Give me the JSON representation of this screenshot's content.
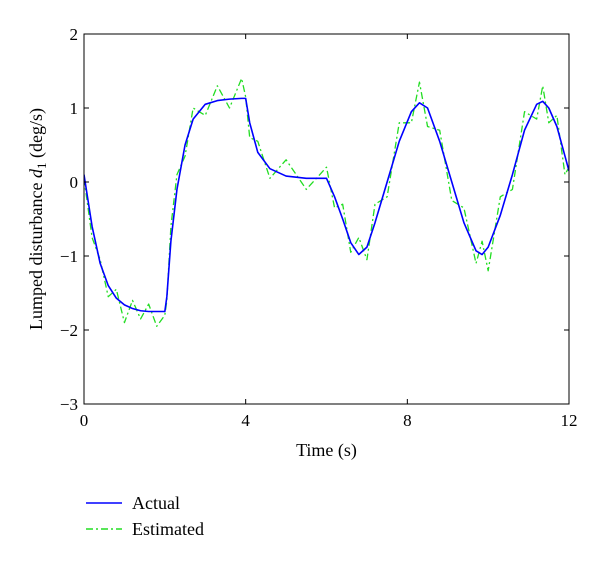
{
  "chart_data": {
    "type": "line",
    "xlabel": "Time (s)",
    "ylabel": {
      "prefix": "Lumped disturbance ",
      "symbol": "d",
      "subscript": "1",
      "suffix": " (deg/s)"
    },
    "xlim": [
      0,
      12
    ],
    "ylim": [
      -3,
      2
    ],
    "xticks": [
      0,
      4,
      8,
      12
    ],
    "yticks": [
      -3,
      -2,
      -1,
      0,
      1,
      2
    ],
    "grid": false,
    "legend": "bottom-left, below plot",
    "series": [
      {
        "name": "Actual",
        "style": "solid",
        "color": "#0000ff",
        "x": [
          0,
          0.2,
          0.4,
          0.6,
          0.8,
          1.0,
          1.2,
          1.4,
          1.6,
          1.8,
          2.0,
          2.05,
          2.15,
          2.3,
          2.5,
          2.7,
          3.0,
          3.3,
          3.6,
          3.9,
          4.0,
          4.1,
          4.3,
          4.6,
          5.0,
          5.5,
          6.0,
          6.2,
          6.4,
          6.6,
          6.8,
          7.0,
          7.2,
          7.5,
          7.8,
          8.1,
          8.3,
          8.5,
          8.8,
          9.1,
          9.4,
          9.7,
          9.85,
          10.0,
          10.3,
          10.6,
          10.9,
          11.2,
          11.35,
          11.5,
          11.7,
          11.9,
          12.0
        ],
        "y": [
          0.1,
          -0.6,
          -1.1,
          -1.4,
          -1.57,
          -1.66,
          -1.71,
          -1.74,
          -1.75,
          -1.75,
          -1.75,
          -1.55,
          -0.8,
          -0.1,
          0.5,
          0.85,
          1.05,
          1.1,
          1.12,
          1.13,
          1.13,
          0.8,
          0.4,
          0.18,
          0.08,
          0.05,
          0.05,
          -0.2,
          -0.5,
          -0.82,
          -0.98,
          -0.88,
          -0.55,
          0.0,
          0.55,
          0.95,
          1.07,
          1.0,
          0.55,
          0.0,
          -0.55,
          -0.93,
          -0.98,
          -0.88,
          -0.45,
          0.1,
          0.7,
          1.05,
          1.09,
          1.0,
          0.75,
          0.35,
          0.15
        ]
      },
      {
        "name": "Estimated",
        "style": "dash-dot",
        "color": "#22dd22",
        "x": [
          0,
          0.2,
          0.4,
          0.6,
          0.8,
          1.0,
          1.2,
          1.4,
          1.6,
          1.8,
          2.0,
          2.05,
          2.15,
          2.3,
          2.5,
          2.7,
          3.0,
          3.3,
          3.6,
          3.9,
          4.0,
          4.1,
          4.3,
          4.6,
          5.0,
          5.5,
          6.0,
          6.2,
          6.4,
          6.6,
          6.8,
          7.0,
          7.2,
          7.5,
          7.8,
          8.1,
          8.3,
          8.5,
          8.8,
          9.1,
          9.4,
          9.7,
          9.85,
          10.0,
          10.3,
          10.6,
          10.9,
          11.2,
          11.35,
          11.5,
          11.7,
          11.9,
          12.0
        ],
        "y": [
          0.05,
          -0.75,
          -1.05,
          -1.55,
          -1.45,
          -1.9,
          -1.6,
          -1.85,
          -1.65,
          -1.95,
          -1.8,
          -1.6,
          -0.6,
          0.1,
          0.35,
          1.0,
          0.9,
          1.3,
          1.0,
          1.4,
          1.15,
          0.6,
          0.55,
          0.05,
          0.3,
          -0.1,
          0.2,
          -0.35,
          -0.3,
          -0.95,
          -0.75,
          -1.05,
          -0.3,
          -0.2,
          0.8,
          0.8,
          1.35,
          0.75,
          0.7,
          -0.25,
          -0.35,
          -1.1,
          -0.8,
          -1.2,
          -0.2,
          -0.1,
          0.95,
          0.85,
          1.3,
          0.8,
          0.9,
          0.1,
          0.2
        ]
      }
    ]
  }
}
